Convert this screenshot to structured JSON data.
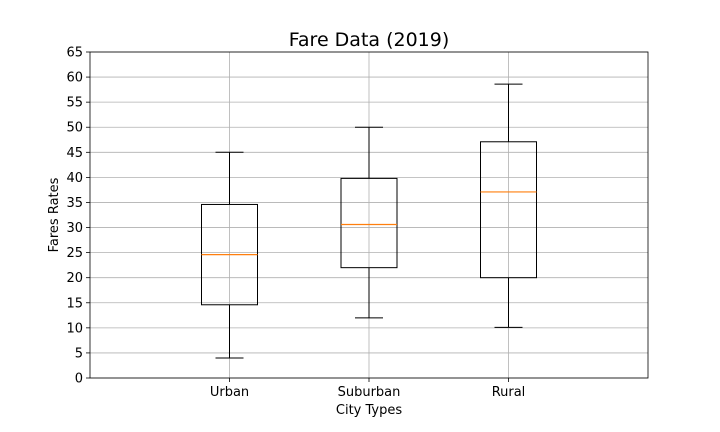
{
  "chart_data": {
    "type": "boxplot",
    "title": "Fare Data (2019)",
    "xlabel": "City Types",
    "ylabel": "Fares Rates",
    "ylim": [
      0,
      65
    ],
    "yticks": [
      0,
      5,
      10,
      15,
      20,
      25,
      30,
      35,
      40,
      45,
      50,
      55,
      60,
      65
    ],
    "grid": true,
    "categories": [
      "Urban",
      "Suburban",
      "Rural"
    ],
    "boxes": [
      {
        "category": "Urban",
        "whisker_low": 4.0,
        "q1": 14.6,
        "median": 24.6,
        "q3": 34.6,
        "whisker_high": 45.0
      },
      {
        "category": "Suburban",
        "whisker_low": 12.0,
        "q1": 22.0,
        "median": 30.6,
        "q3": 39.8,
        "whisker_high": 50.0
      },
      {
        "category": "Rural",
        "whisker_low": 10.1,
        "q1": 20.0,
        "median": 37.1,
        "q3": 47.1,
        "whisker_high": 58.6
      }
    ],
    "colors": {
      "box": "#000000",
      "median": "#ff7f0e",
      "grid": "#b0b0b0"
    }
  }
}
